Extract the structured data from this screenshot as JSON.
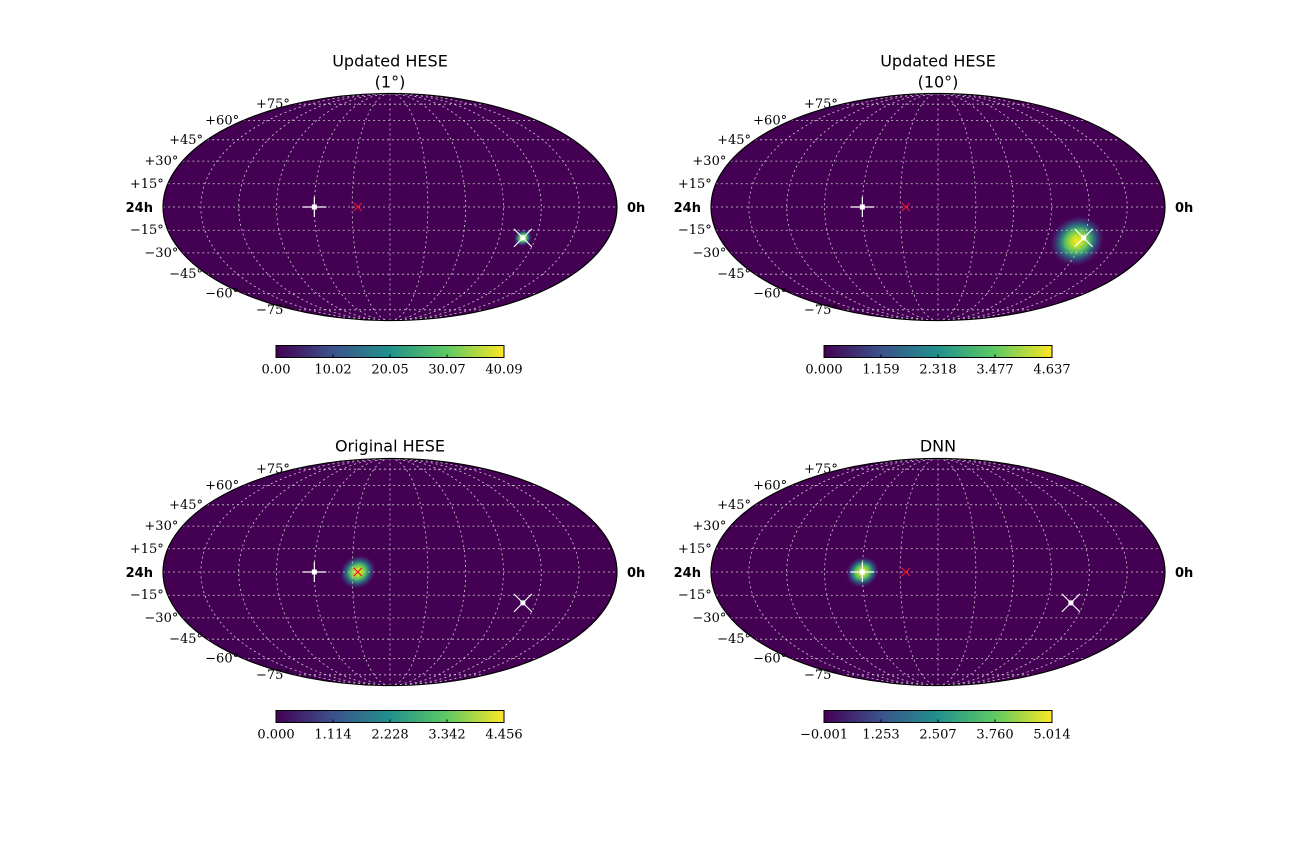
{
  "colors": {
    "map_background": "#440154",
    "grid": "#cfcfcf",
    "marker_white": "#ffffff",
    "marker_red": "#e8112d",
    "colormap": [
      "#440154",
      "#3b528b",
      "#21918c",
      "#5ec962",
      "#fde725"
    ]
  },
  "chart_data": [
    {
      "type": "heatmap",
      "projection": "mollweide",
      "title": [
        "Updated HESE",
        "(1°)"
      ],
      "dec_tick_labels": [
        "+75°",
        "+60°",
        "+45°",
        "+30°",
        "+15°",
        "−15°",
        "−30°",
        "−45°",
        "−60°",
        "−75°"
      ],
      "ra_labels": {
        "left": "24h",
        "right": "0h"
      },
      "grid": true,
      "blobs": [
        {
          "ra_h": 4.7,
          "dec": -20,
          "sigma_deg": 3
        }
      ],
      "markers": [
        {
          "kind": "plus",
          "ra_h": 16.0,
          "dec": 0,
          "color": "#ffffff"
        },
        {
          "kind": "x",
          "ra_h": 13.7,
          "dec": 0,
          "color": "#e8112d"
        },
        {
          "kind": "cross",
          "ra_h": 4.7,
          "dec": -20,
          "color": "#ffffff"
        }
      ],
      "colorbar": {
        "min": 0.0,
        "max": 40.09,
        "ticks": [
          "0.00",
          "10.02",
          "20.05",
          "30.07",
          "40.09"
        ]
      }
    },
    {
      "type": "heatmap",
      "projection": "mollweide",
      "title": [
        "Updated HESE",
        "(10°)"
      ],
      "dec_tick_labels": [
        "+75°",
        "+60°",
        "+45°",
        "+30°",
        "+15°",
        "−15°",
        "−30°",
        "−45°",
        "−60°",
        "−75°"
      ],
      "ra_labels": {
        "left": "24h",
        "right": "0h"
      },
      "grid": true,
      "blobs": [
        {
          "ra_h": 4.3,
          "dec": -22,
          "sigma_deg": 9
        }
      ],
      "markers": [
        {
          "kind": "plus",
          "ra_h": 16.0,
          "dec": 0,
          "color": "#ffffff"
        },
        {
          "kind": "x",
          "ra_h": 13.7,
          "dec": 0,
          "color": "#e8112d"
        },
        {
          "kind": "cross",
          "ra_h": 4.0,
          "dec": -20,
          "color": "#ffffff"
        }
      ],
      "colorbar": {
        "min": 0.0,
        "max": 4.637,
        "ticks": [
          "0.000",
          "1.159",
          "2.318",
          "3.477",
          "4.637"
        ]
      }
    },
    {
      "type": "heatmap",
      "projection": "mollweide",
      "title": [
        "Original HESE"
      ],
      "dec_tick_labels": [
        "+75°",
        "+60°",
        "+45°",
        "+30°",
        "+15°",
        "−15°",
        "−30°",
        "−45°",
        "−60°",
        "−75°"
      ],
      "ra_labels": {
        "left": "24h",
        "right": "0h"
      },
      "grid": true,
      "blobs": [
        {
          "ra_h": 13.7,
          "dec": 0,
          "sigma_deg": 6
        }
      ],
      "markers": [
        {
          "kind": "plus",
          "ra_h": 16.0,
          "dec": 0,
          "color": "#ffffff"
        },
        {
          "kind": "x",
          "ra_h": 13.7,
          "dec": 0,
          "color": "#e8112d"
        },
        {
          "kind": "cross",
          "ra_h": 4.7,
          "dec": -20,
          "color": "#ffffff"
        }
      ],
      "colorbar": {
        "min": 0.0,
        "max": 4.456,
        "ticks": [
          "0.000",
          "1.114",
          "2.228",
          "3.342",
          "4.456"
        ]
      }
    },
    {
      "type": "heatmap",
      "projection": "mollweide",
      "title": [
        "DNN"
      ],
      "dec_tick_labels": [
        "+75°",
        "+60°",
        "+45°",
        "+30°",
        "+15°",
        "−15°",
        "−30°",
        "−45°",
        "−60°",
        "−75°"
      ],
      "ra_labels": {
        "left": "24h",
        "right": "0h"
      },
      "grid": true,
      "blobs": [
        {
          "ra_h": 16.0,
          "dec": 0,
          "sigma_deg": 5.5
        }
      ],
      "markers": [
        {
          "kind": "plus",
          "ra_h": 16.0,
          "dec": 0,
          "color": "#ffffff"
        },
        {
          "kind": "x",
          "ra_h": 13.7,
          "dec": 0,
          "color": "#e8112d"
        },
        {
          "kind": "cross",
          "ra_h": 4.7,
          "dec": -20,
          "color": "#ffffff"
        }
      ],
      "colorbar": {
        "min": -0.001,
        "max": 5.014,
        "ticks": [
          "−0.001",
          "1.253",
          "2.507",
          "3.760",
          "5.014"
        ]
      }
    }
  ]
}
